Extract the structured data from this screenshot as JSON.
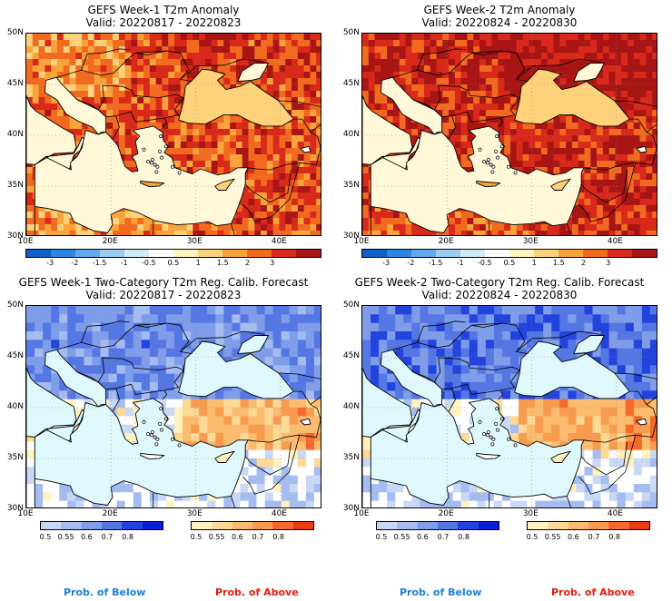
{
  "panels": [
    {
      "title": "GEFS Week-1 T2m Anomaly",
      "valid": "Valid: 20220817 - 20220823",
      "kind": "anomaly",
      "heat": 0.55,
      "cool": 0.35
    },
    {
      "title": "GEFS Week-2 T2m Anomaly",
      "valid": "Valid: 20220824 - 20220830",
      "kind": "anomaly",
      "heat": 0.85,
      "cool": 0.25
    },
    {
      "title": "GEFS Week-1 Two-Category T2m Reg. Calib. Forecast",
      "valid": "Valid: 20220817 - 20220823",
      "kind": "prob",
      "heat": 0.55,
      "cool": 0.55
    },
    {
      "title": "GEFS Week-2 Two-Category T2m Reg. Calib. Forecast",
      "valid": "Valid: 20220824 - 20220830",
      "kind": "prob",
      "heat": 0.75,
      "cool": 0.8
    }
  ],
  "axes": {
    "lat_labels": [
      "50N",
      "45N",
      "40N",
      "35N",
      "30N"
    ],
    "lon_labels": [
      "10E",
      "20E",
      "30E",
      "40E"
    ]
  },
  "anomaly_colorbar": {
    "labels": [
      "-3",
      "-2",
      "-1.5",
      "-1",
      "-0.5",
      "0.5",
      "1",
      "1.5",
      "2",
      "3"
    ],
    "colors": [
      "#1060c8",
      "#2f86e0",
      "#60a8ec",
      "#9ccbf2",
      "#d2ebf8",
      "#ffffff",
      "#fff3c0",
      "#fdd27a",
      "#f9a43a",
      "#f26a1f",
      "#d8291b",
      "#a81515"
    ]
  },
  "prob_colorbar": {
    "below_labels": [
      "0.5",
      "0.55",
      "0.6",
      "0.7",
      "0.8"
    ],
    "above_labels": [
      "0.5",
      "0.55",
      "0.6",
      "0.7",
      "0.8"
    ],
    "below_colors": [
      "#c9d8f6",
      "#a4bcf0",
      "#7f9de8",
      "#5577e4",
      "#2244dc",
      "#0a1ed8"
    ],
    "above_colors": [
      "#fff1c0",
      "#fdd996",
      "#fbbc70",
      "#f99b4e",
      "#f56a2c",
      "#ee3a14"
    ]
  },
  "footer": {
    "below": "Prob. of Below",
    "above": "Prob. of Above"
  },
  "colors": {
    "sea_prob": "#dff8fb",
    "sea_anom": "#fff8d8"
  }
}
